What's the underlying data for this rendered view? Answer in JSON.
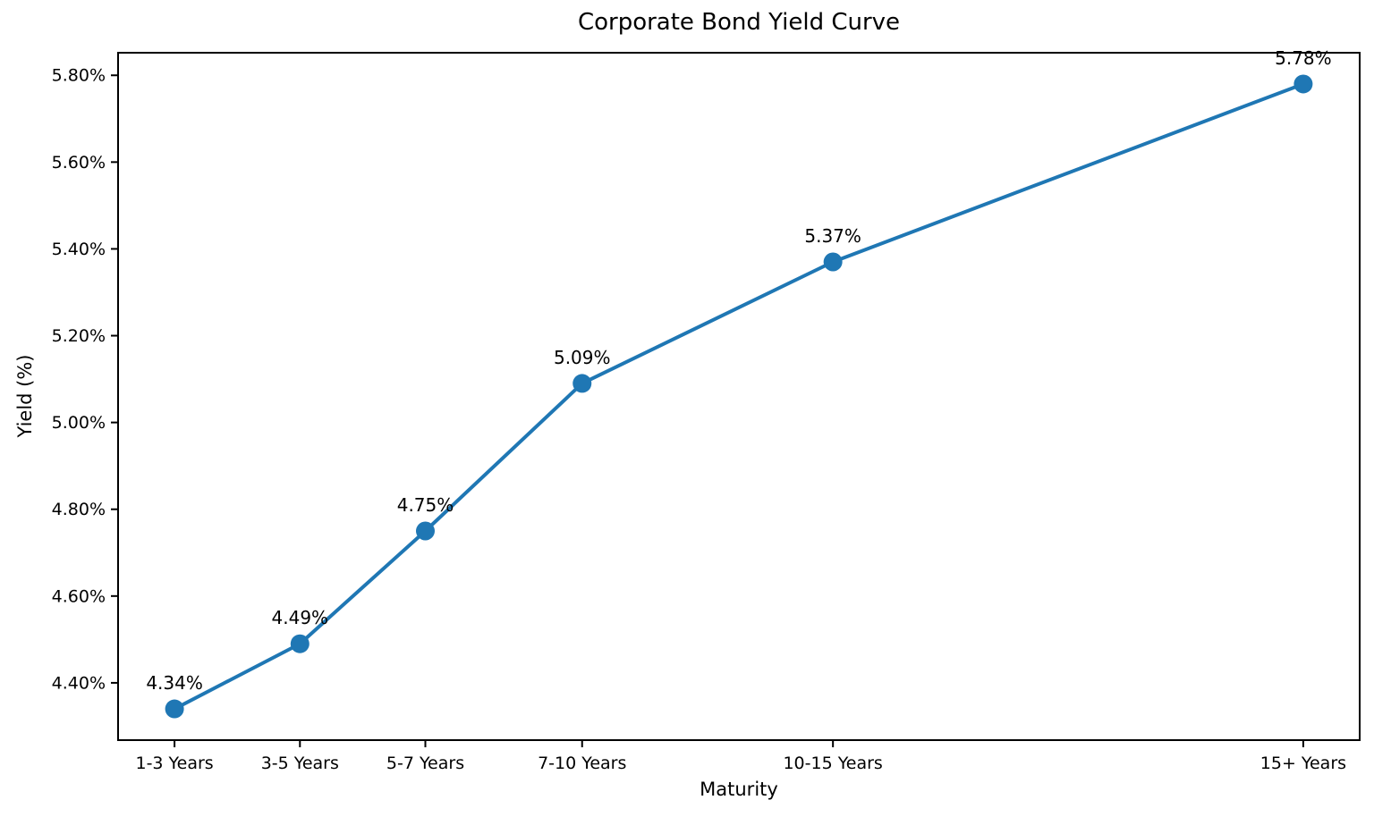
{
  "page": {
    "background": "#ffffff",
    "text_color": "#000000"
  },
  "chart_data": {
    "type": "line",
    "title": "Corporate Bond Yield Curve",
    "xlabel": "Maturity",
    "ylabel": "Yield (%)",
    "categories": [
      "1-3 Years",
      "3-5 Years",
      "5-7 Years",
      "7-10 Years",
      "10-15 Years",
      "15+ Years"
    ],
    "x": [
      2,
      4,
      6,
      8.5,
      12.5,
      20
    ],
    "values": [
      4.34,
      4.49,
      4.75,
      5.09,
      5.37,
      5.78
    ],
    "point_labels": [
      "4.34%",
      "4.49%",
      "4.75%",
      "5.09%",
      "5.37%",
      "5.78%"
    ],
    "yticks": [
      4.4,
      4.6,
      4.8,
      5.0,
      5.2,
      5.4,
      5.6,
      5.8
    ],
    "ytick_labels": [
      "4.40%",
      "4.60%",
      "4.80%",
      "5.00%",
      "5.20%",
      "5.40%",
      "5.60%",
      "5.80%"
    ],
    "xlim": [
      1.1,
      20.9
    ],
    "ylim": [
      4.268,
      5.852
    ],
    "line_color": "#1f77b4",
    "marker_color": "#1f77b4",
    "spine_color": "#000000",
    "grid": false,
    "legend_position": "none"
  }
}
